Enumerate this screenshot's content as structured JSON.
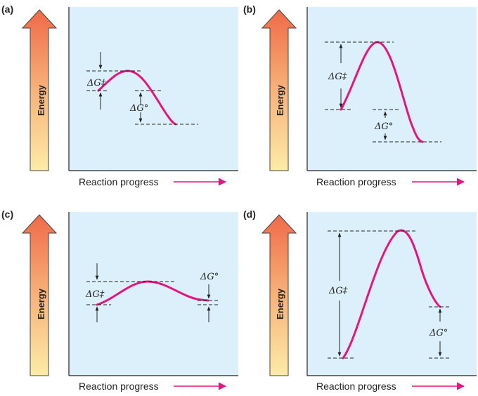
{
  "panels": [
    {
      "letter": "(a)",
      "energy_label": "Energy",
      "x_label": "Reaction progress",
      "dg_act": "ΔG‡",
      "dg_std": "ΔG°"
    },
    {
      "letter": "(b)",
      "energy_label": "Energy",
      "x_label": "Reaction progress",
      "dg_act": "ΔG‡",
      "dg_std": "ΔG°"
    },
    {
      "letter": "(c)",
      "energy_label": "Energy",
      "x_label": "Reaction progress",
      "dg_act": "ΔG‡",
      "dg_std": "ΔG°"
    },
    {
      "letter": "(d)",
      "energy_label": "Energy",
      "x_label": "Reaction progress",
      "dg_act": "ΔG‡",
      "dg_std": "ΔG°"
    }
  ],
  "colors": {
    "curve": "#e3157f",
    "plot_bg": "#dcf0fb",
    "arrow_top": "#ef6a48",
    "arrow_bottom": "#fde9a8"
  }
}
